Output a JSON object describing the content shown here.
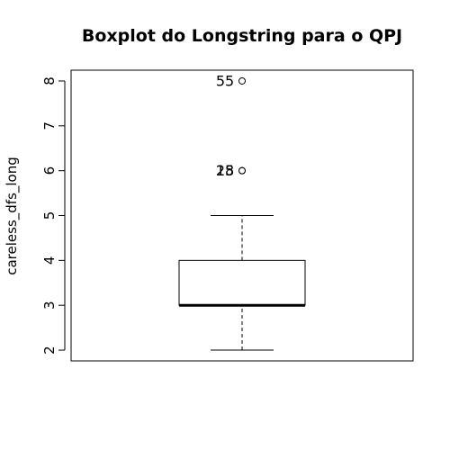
{
  "chart_data": {
    "type": "boxplot",
    "title": "Boxplot do Longstring para o QPJ",
    "xlabel": "",
    "ylabel": "careless_dfs_long",
    "ylim": [
      1.76,
      8.24
    ],
    "yticks": [
      2,
      3,
      4,
      5,
      6,
      7,
      8
    ],
    "grid": false,
    "box": {
      "min": 2,
      "q1": 3,
      "median": 3,
      "q3": 4,
      "max": 5
    },
    "outliers": [
      {
        "value": 6,
        "label": "28"
      },
      {
        "value": 6,
        "label": "15"
      },
      {
        "value": 8,
        "label": "55"
      }
    ]
  }
}
